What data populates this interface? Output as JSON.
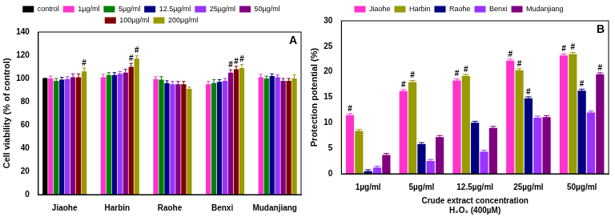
{
  "chart_data": [
    {
      "type": "bar",
      "panel_label": "A",
      "ylabel": "Cell viability (% of control)",
      "categories": [
        "Jiaohe",
        "Harbin",
        "Raohe",
        "Benxi",
        "Mudanjiang"
      ],
      "series": [
        {
          "name": "control",
          "color": "#000000",
          "values": [
            100,
            null,
            null,
            null,
            null
          ],
          "errors": [
            0,
            null,
            null,
            null,
            null
          ]
        },
        {
          "name": "1µg/ml",
          "color": "#ff33cc",
          "values": [
            100,
            101,
            99.5,
            95,
            101
          ],
          "errors": [
            2,
            2.5,
            2,
            2.5,
            2.5
          ]
        },
        {
          "name": "5µg/ml",
          "color": "#008000",
          "values": [
            98,
            103,
            99,
            96,
            100
          ],
          "errors": [
            2,
            2,
            2.5,
            3,
            2
          ]
        },
        {
          "name": "12.5µg/ml",
          "color": "#000080",
          "values": [
            99,
            103,
            96,
            97,
            102
          ],
          "errors": [
            2,
            2,
            2,
            2,
            2
          ]
        },
        {
          "name": "25µg/ml",
          "color": "#9933ff",
          "values": [
            99.5,
            104,
            95,
            98,
            101
          ],
          "errors": [
            2,
            2,
            2.5,
            2,
            2
          ]
        },
        {
          "name": "50µg/ml",
          "color": "#800080",
          "values": [
            101,
            105,
            95,
            105,
            98
          ],
          "errors": [
            3,
            3,
            2.5,
            2.5,
            2
          ]
        },
        {
          "name": "100µg/ml",
          "color": "#800000",
          "values": [
            101,
            110,
            95,
            108,
            98
          ],
          "errors": [
            3,
            3,
            2.5,
            2.5,
            2
          ]
        },
        {
          "name": "200µg/ml",
          "color": "#999900",
          "values": [
            106,
            117,
            91,
            109,
            100
          ],
          "errors": [
            3,
            2.5,
            1.5,
            3,
            3
          ]
        }
      ],
      "annotations": [
        {
          "text": "#",
          "series": "200µg/ml",
          "category": "Jiaohe"
        },
        {
          "text": "#",
          "series": "100µg/ml",
          "category": "Harbin"
        },
        {
          "text": "#",
          "series": "200µg/ml",
          "category": "Harbin"
        },
        {
          "text": "#",
          "series": "50µg/ml",
          "category": "Benxi"
        },
        {
          "text": "#",
          "series": "100µg/ml",
          "category": "Benxi"
        },
        {
          "text": "#",
          "series": "200µg/ml",
          "category": "Benxi"
        }
      ],
      "ylim": [
        0,
        140
      ],
      "yticks": [
        0,
        20,
        40,
        60,
        80,
        100,
        120,
        140
      ],
      "legend": "top",
      "grid": false
    },
    {
      "type": "bar",
      "panel_label": "B",
      "ylabel": "Protection potential (%)",
      "xlabel": [
        "Crude extract concentration",
        "H₂O₂ (400µM)"
      ],
      "categories": [
        "1µg/ml",
        "5µg/ml",
        "12.5µg/ml",
        "25µg/ml",
        "50µg/ml"
      ],
      "series": [
        {
          "name": "Jiaohe",
          "color": "#ff33cc",
          "values": [
            11.5,
            16.2,
            18.3,
            22.2,
            23.2
          ],
          "errors": [
            0.3,
            0.3,
            0.3,
            0.3,
            0.3
          ]
        },
        {
          "name": "Harbin",
          "color": "#999900",
          "values": [
            8.4,
            18,
            19.2,
            20.3,
            23.5
          ],
          "errors": [
            0.3,
            0.3,
            0.3,
            0.3,
            0.3
          ]
        },
        {
          "name": "Raohe",
          "color": "#000080",
          "values": [
            0.5,
            5.8,
            10,
            14.8,
            16.3
          ],
          "errors": [
            0.3,
            0.3,
            0.3,
            0.3,
            0.3
          ]
        },
        {
          "name": "Benxi",
          "color": "#9933ff",
          "values": [
            1.2,
            2.5,
            4.3,
            11,
            12
          ],
          "errors": [
            0.3,
            0.3,
            0.3,
            0.3,
            0.3
          ]
        },
        {
          "name": "Mudanjiang",
          "color": "#800080",
          "values": [
            3.7,
            7.2,
            9,
            11.1,
            19.5
          ],
          "errors": [
            0.3,
            0.3,
            0.3,
            0.3,
            0.3
          ]
        }
      ],
      "annotations": [
        {
          "text": "#",
          "series": "Jiaohe",
          "category": "1µg/ml"
        },
        {
          "text": "#",
          "series": "Jiaohe",
          "category": "5µg/ml"
        },
        {
          "text": "#",
          "series": "Harbin",
          "category": "5µg/ml"
        },
        {
          "text": "#",
          "series": "Jiaohe",
          "category": "12.5µg/ml"
        },
        {
          "text": "#",
          "series": "Harbin",
          "category": "12.5µg/ml"
        },
        {
          "text": "#",
          "series": "Jiaohe",
          "category": "25µg/ml"
        },
        {
          "text": "#",
          "series": "Harbin",
          "category": "25µg/ml"
        },
        {
          "text": "#",
          "series": "Raohe",
          "category": "25µg/ml"
        },
        {
          "text": "#",
          "series": "Jiaohe",
          "category": "50µg/ml"
        },
        {
          "text": "#",
          "series": "Harbin",
          "category": "50µg/ml"
        },
        {
          "text": "#",
          "series": "Raohe",
          "category": "50µg/ml"
        },
        {
          "text": "#",
          "series": "Mudanjiang",
          "category": "50µg/ml"
        }
      ],
      "ylim": [
        0,
        30
      ],
      "yticks": [
        0,
        5,
        10,
        15,
        20,
        25,
        30
      ],
      "legend": "top",
      "grid": false
    }
  ]
}
